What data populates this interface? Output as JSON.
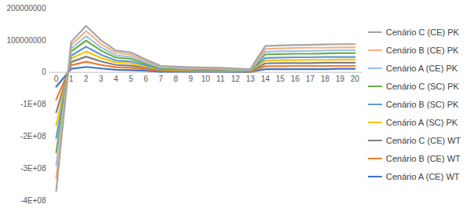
{
  "chart_data": {
    "type": "line",
    "categories": [
      "0",
      "1",
      "2",
      "3",
      "4",
      "5",
      "6",
      "7",
      "8",
      "9",
      "10",
      "11",
      "12",
      "13",
      "14",
      "15",
      "16",
      "17",
      "18",
      "19",
      "20"
    ],
    "series": [
      {
        "name": "Cenário C (CE) PK",
        "color": "#a5a5a5",
        "values": [
          -370000000,
          95000000,
          145000000,
          100000000,
          68000000,
          62000000,
          40000000,
          20000000,
          18000000,
          16000000,
          15000000,
          14000000,
          12000000,
          10000000,
          82000000,
          84000000,
          85000000,
          86000000,
          87000000,
          88000000,
          88000000
        ]
      },
      {
        "name": "Cenário B (CE) PK",
        "color": "#f4b183",
        "values": [
          -330000000,
          85000000,
          129000000,
          89000000,
          61000000,
          55000000,
          36000000,
          18000000,
          16000000,
          14000000,
          13000000,
          12000000,
          11000000,
          9000000,
          73000000,
          75000000,
          76000000,
          77000000,
          77000000,
          78000000,
          78000000
        ]
      },
      {
        "name": "Cenário A (CE) PK",
        "color": "#9dc3e6",
        "values": [
          -290000000,
          74000000,
          113000000,
          78000000,
          53000000,
          48000000,
          31000000,
          16000000,
          14000000,
          12000000,
          12000000,
          11000000,
          9000000,
          8000000,
          64000000,
          66000000,
          66000000,
          67000000,
          68000000,
          69000000,
          69000000
        ]
      },
      {
        "name": "Cenário C (SC) PK",
        "color": "#70ad47",
        "values": [
          -250000000,
          65000000,
          99000000,
          68000000,
          46000000,
          42000000,
          27000000,
          14000000,
          12000000,
          11000000,
          10000000,
          10000000,
          8000000,
          7000000,
          56000000,
          57000000,
          58000000,
          58000000,
          59000000,
          60000000,
          60000000
        ]
      },
      {
        "name": "Cenário B (SC) PK",
        "color": "#5b9bd5",
        "values": [
          -205000000,
          52000000,
          80000000,
          55000000,
          37000000,
          34000000,
          22000000,
          11000000,
          10000000,
          9000000,
          8000000,
          8000000,
          7000000,
          6000000,
          45000000,
          46000000,
          47000000,
          47000000,
          48000000,
          48000000,
          48000000
        ]
      },
      {
        "name": "Cenário A (SC) PK",
        "color": "#ffc000",
        "values": [
          -165000000,
          43000000,
          65000000,
          45000000,
          31000000,
          28000000,
          18000000,
          9000000,
          8000000,
          7000000,
          7000000,
          6000000,
          5000000,
          5000000,
          37000000,
          38000000,
          38000000,
          39000000,
          39000000,
          40000000,
          40000000
        ]
      },
      {
        "name": "Cenário C (CE) WT",
        "color": "#7f7f7f",
        "values": [
          -125000000,
          32000000,
          49000000,
          34000000,
          23000000,
          21000000,
          14000000,
          7000000,
          6000000,
          5000000,
          5000000,
          5000000,
          4000000,
          3000000,
          28000000,
          29000000,
          29000000,
          29000000,
          30000000,
          30000000,
          30000000
        ]
      },
      {
        "name": "Cenário B (CE) WT",
        "color": "#ed7d31",
        "values": [
          -85000000,
          22000000,
          33000000,
          23000000,
          16000000,
          14000000,
          9000000,
          5000000,
          4000000,
          4000000,
          3000000,
          3000000,
          3000000,
          2000000,
          19000000,
          19000000,
          20000000,
          20000000,
          20000000,
          20000000,
          20000000
        ]
      },
      {
        "name": "Cenário A (CE) WT",
        "color": "#4472c4",
        "values": [
          -45000000,
          11000000,
          17000000,
          12000000,
          8000000,
          7000000,
          5000000,
          2000000,
          2000000,
          2000000,
          2000000,
          2000000,
          1000000,
          1000000,
          10000000,
          10000000,
          10000000,
          10000000,
          10000000,
          11000000,
          11000000
        ]
      }
    ],
    "ylim": [
      -400000000,
      200000000
    ],
    "yticks": [
      {
        "value": -400000000,
        "label": "-4E+08"
      },
      {
        "value": -300000000,
        "label": "-3E+08"
      },
      {
        "value": -200000000,
        "label": "-2E+08"
      },
      {
        "value": -100000000,
        "label": "-1E+08"
      },
      0,
      100000000,
      200000000
    ],
    "grid": false,
    "legend": "right"
  }
}
